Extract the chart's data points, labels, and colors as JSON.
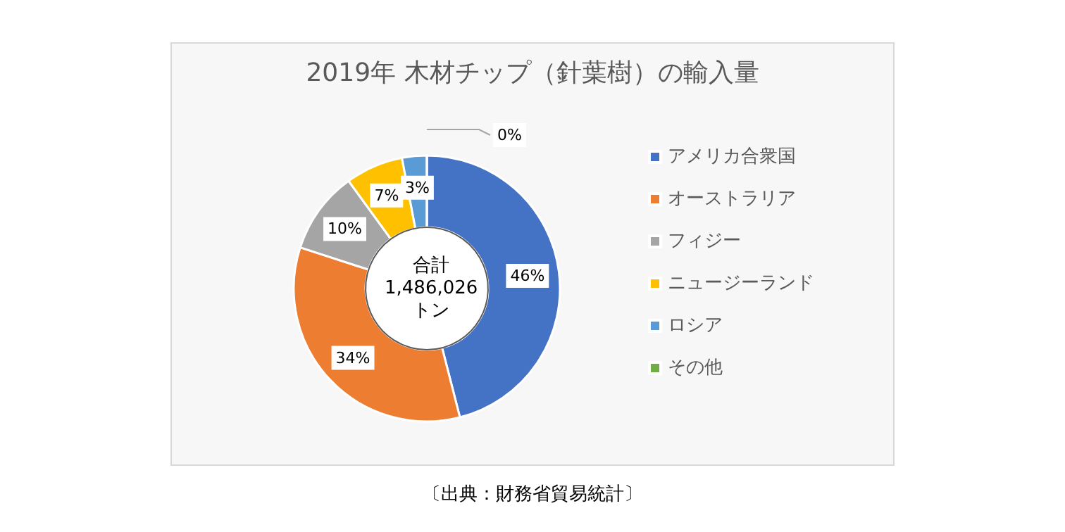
{
  "chart_data": {
    "type": "donut",
    "title": "2019年 木材チップ（針葉樹）の輸入量",
    "categories": [
      "アメリカ合衆国",
      "オーストラリア",
      "フィジー",
      "ニュージーランド",
      "ロシア",
      "その他"
    ],
    "values": [
      46,
      34,
      10,
      7,
      3,
      0
    ],
    "colors": [
      "#4472c4",
      "#ed7d31",
      "#a5a5a5",
      "#ffc000",
      "#5b9bd5",
      "#70ad47"
    ],
    "value_labels": [
      "46%",
      "34%",
      "10%",
      "7%",
      "3%",
      "0%"
    ],
    "legend": "right",
    "annotations": [
      "合計\n1,486,026\nトン",
      "〔出典：財務省貿易統計〕"
    ]
  }
}
